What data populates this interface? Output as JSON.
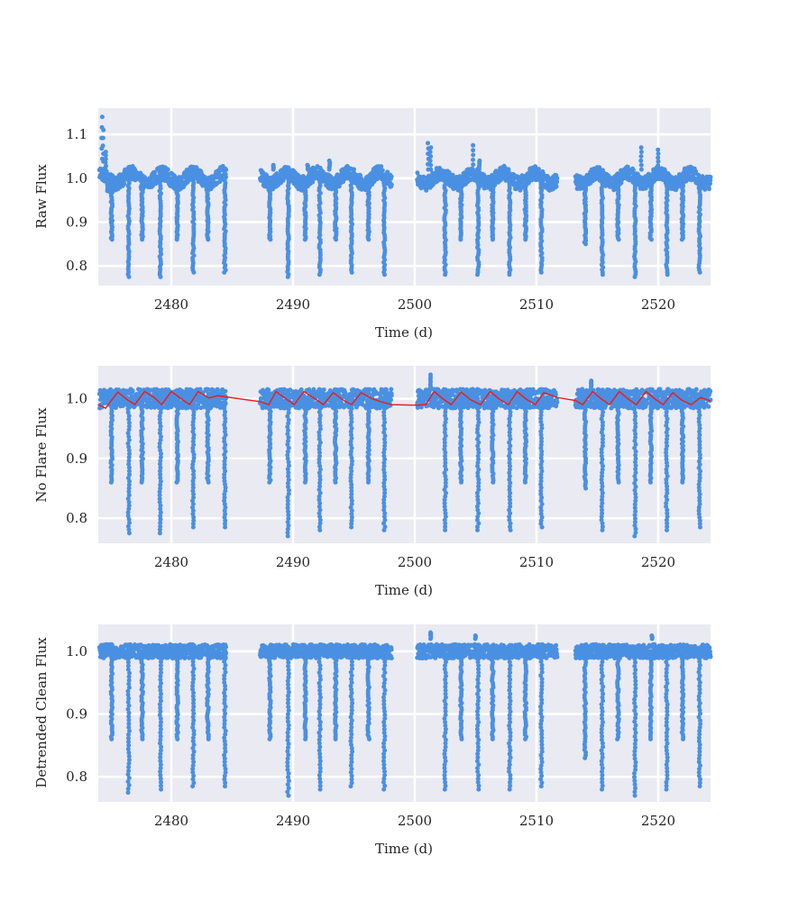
{
  "chart_data": [
    {
      "type": "scatter",
      "xlabel": "Time (d)",
      "ylabel": "Raw Flux",
      "xlim": [
        2474,
        2524.3
      ],
      "ylim": [
        0.755,
        1.16
      ],
      "xticks": [
        2480,
        2490,
        2500,
        2510,
        2520
      ],
      "yticks": [
        0.8,
        0.9,
        1.0,
        1.1
      ],
      "ytick_labels": [
        "0.8",
        "0.9",
        "1.0",
        "1.1"
      ],
      "grid": true,
      "series": [
        {
          "kind": "points",
          "color": "#4a90e2",
          "baseline": 1.0,
          "segments": [
            [
              2474.1,
              2484.5
            ],
            [
              2487.3,
              2498.1
            ],
            [
              2500.2,
              2511.7
            ],
            [
              2513.2,
              2524.3
            ]
          ],
          "dips": [
            {
              "t": 2474.8,
              "min": 0.97
            },
            {
              "t": 2475.1,
              "min": 0.86
            },
            {
              "t": 2476.5,
              "min": 0.775
            },
            {
              "t": 2477.6,
              "min": 0.86
            },
            {
              "t": 2479.1,
              "min": 0.775
            },
            {
              "t": 2480.5,
              "min": 0.86
            },
            {
              "t": 2481.8,
              "min": 0.785
            },
            {
              "t": 2483.0,
              "min": 0.86
            },
            {
              "t": 2484.4,
              "min": 0.785
            },
            {
              "t": 2488.1,
              "min": 0.86
            },
            {
              "t": 2489.6,
              "min": 0.775
            },
            {
              "t": 2491.0,
              "min": 0.86
            },
            {
              "t": 2492.2,
              "min": 0.78
            },
            {
              "t": 2493.5,
              "min": 0.86
            },
            {
              "t": 2494.8,
              "min": 0.785
            },
            {
              "t": 2496.2,
              "min": 0.86
            },
            {
              "t": 2497.5,
              "min": 0.78
            },
            {
              "t": 2502.5,
              "min": 0.78
            },
            {
              "t": 2503.8,
              "min": 0.86
            },
            {
              "t": 2505.2,
              "min": 0.78
            },
            {
              "t": 2506.4,
              "min": 0.86
            },
            {
              "t": 2507.8,
              "min": 0.78
            },
            {
              "t": 2509.1,
              "min": 0.86
            },
            {
              "t": 2510.4,
              "min": 0.785
            },
            {
              "t": 2514.0,
              "min": 0.85
            },
            {
              "t": 2515.4,
              "min": 0.78
            },
            {
              "t": 2516.7,
              "min": 0.86
            },
            {
              "t": 2518.1,
              "min": 0.775
            },
            {
              "t": 2519.4,
              "min": 0.86
            },
            {
              "t": 2520.7,
              "min": 0.78
            },
            {
              "t": 2522.0,
              "min": 0.86
            },
            {
              "t": 2523.4,
              "min": 0.785
            }
          ],
          "flares": [
            {
              "t": 2474.3,
              "peak": 1.14
            },
            {
              "t": 2474.4,
              "peak": 1.11
            },
            {
              "t": 2474.6,
              "peak": 1.06
            },
            {
              "t": 2488.4,
              "peak": 1.03
            },
            {
              "t": 2491.2,
              "peak": 1.03
            },
            {
              "t": 2493.0,
              "peak": 1.04
            },
            {
              "t": 2501.1,
              "peak": 1.08
            },
            {
              "t": 2501.3,
              "peak": 1.07
            },
            {
              "t": 2504.8,
              "peak": 1.075
            },
            {
              "t": 2505.3,
              "peak": 1.04
            },
            {
              "t": 2518.6,
              "peak": 1.07
            },
            {
              "t": 2520.0,
              "peak": 1.065
            }
          ]
        }
      ]
    },
    {
      "type": "scatter",
      "xlabel": "Time (d)",
      "ylabel": "No Flare Flux",
      "xlim": [
        2474,
        2524.3
      ],
      "ylim": [
        0.758,
        1.055
      ],
      "xticks": [
        2480,
        2490,
        2500,
        2510,
        2520
      ],
      "yticks": [
        0.8,
        0.9,
        1.0
      ],
      "ytick_labels": [
        "0.8",
        "0.9",
        "1.0"
      ],
      "grid": true,
      "series": [
        {
          "kind": "points",
          "color": "#4a90e2",
          "baseline": 1.0,
          "segments": [
            [
              2474.1,
              2484.5
            ],
            [
              2487.3,
              2498.1
            ],
            [
              2500.2,
              2511.7
            ],
            [
              2513.2,
              2524.3
            ]
          ],
          "dips": [
            {
              "t": 2475.1,
              "min": 0.86
            },
            {
              "t": 2476.5,
              "min": 0.775
            },
            {
              "t": 2477.6,
              "min": 0.86
            },
            {
              "t": 2479.1,
              "min": 0.775
            },
            {
              "t": 2480.5,
              "min": 0.86
            },
            {
              "t": 2481.8,
              "min": 0.785
            },
            {
              "t": 2483.0,
              "min": 0.86
            },
            {
              "t": 2484.4,
              "min": 0.785
            },
            {
              "t": 2488.1,
              "min": 0.86
            },
            {
              "t": 2489.6,
              "min": 0.77
            },
            {
              "t": 2491.0,
              "min": 0.86
            },
            {
              "t": 2492.2,
              "min": 0.78
            },
            {
              "t": 2493.5,
              "min": 0.86
            },
            {
              "t": 2494.8,
              "min": 0.785
            },
            {
              "t": 2496.2,
              "min": 0.86
            },
            {
              "t": 2497.5,
              "min": 0.78
            },
            {
              "t": 2502.5,
              "min": 0.78
            },
            {
              "t": 2503.8,
              "min": 0.86
            },
            {
              "t": 2505.2,
              "min": 0.78
            },
            {
              "t": 2506.4,
              "min": 0.86
            },
            {
              "t": 2507.8,
              "min": 0.78
            },
            {
              "t": 2509.1,
              "min": 0.86
            },
            {
              "t": 2510.4,
              "min": 0.785
            },
            {
              "t": 2514.0,
              "min": 0.85
            },
            {
              "t": 2515.4,
              "min": 0.78
            },
            {
              "t": 2516.7,
              "min": 0.86
            },
            {
              "t": 2518.1,
              "min": 0.77
            },
            {
              "t": 2519.4,
              "min": 0.86
            },
            {
              "t": 2520.7,
              "min": 0.78
            },
            {
              "t": 2522.0,
              "min": 0.86
            },
            {
              "t": 2523.4,
              "min": 0.785
            }
          ],
          "flares": [
            {
              "t": 2501.3,
              "peak": 1.04
            },
            {
              "t": 2514.5,
              "peak": 1.03
            }
          ]
        },
        {
          "kind": "trend",
          "color": "#e82020",
          "x": [
            2474.0,
            2474.6,
            2475.6,
            2476.4,
            2477.0,
            2477.8,
            2478.6,
            2479.2,
            2480.0,
            2480.8,
            2481.5,
            2482.2,
            2483.1,
            2483.8,
            2484.5,
            2487.3,
            2488.0,
            2488.6,
            2489.4,
            2490.1,
            2490.9,
            2491.8,
            2492.5,
            2493.3,
            2494.1,
            2494.8,
            2495.6,
            2496.5,
            2497.2,
            2498.1,
            2500.2,
            2500.9,
            2501.6,
            2502.3,
            2503.0,
            2503.8,
            2504.6,
            2505.4,
            2506.2,
            2506.9,
            2507.7,
            2508.4,
            2509.1,
            2509.9,
            2510.6,
            2511.7,
            2513.2,
            2513.8,
            2514.6,
            2515.3,
            2516.0,
            2516.8,
            2517.5,
            2518.2,
            2519.0,
            2519.7,
            2520.4,
            2521.2,
            2521.9,
            2522.7,
            2523.5,
            2524.3
          ],
          "y": [
            0.99,
            0.984,
            1.011,
            0.998,
            0.99,
            1.012,
            1.002,
            0.99,
            1.012,
            1.0,
            0.99,
            1.012,
            1.001,
            1.005,
            1.003,
            0.995,
            0.99,
            1.012,
            1.0,
            0.99,
            1.012,
            1.0,
            0.99,
            1.01,
            0.998,
            0.99,
            1.01,
            1.0,
            0.995,
            0.99,
            0.989,
            0.99,
            1.012,
            1.0,
            0.99,
            1.011,
            0.998,
            0.99,
            1.012,
            1.0,
            0.99,
            1.012,
            1.0,
            0.99,
            1.01,
            1.002,
            0.997,
            0.99,
            1.012,
            1.0,
            0.99,
            1.012,
            1.0,
            0.99,
            1.012,
            1.0,
            0.99,
            1.01,
            0.998,
            0.99,
            1.002,
            0.996
          ]
        }
      ]
    },
    {
      "type": "scatter",
      "xlabel": "Time (d)",
      "ylabel": "Detrended Clean Flux",
      "xlim": [
        2474,
        2524.3
      ],
      "ylim": [
        0.76,
        1.043
      ],
      "xticks": [
        2480,
        2490,
        2500,
        2510,
        2520
      ],
      "yticks": [
        0.8,
        0.9,
        1.0
      ],
      "ytick_labels": [
        "0.8",
        "0.9",
        "1.0"
      ],
      "grid": true,
      "series": [
        {
          "kind": "points",
          "color": "#4a90e2",
          "baseline": 1.0,
          "segments": [
            [
              2474.1,
              2484.5
            ],
            [
              2487.3,
              2498.1
            ],
            [
              2500.2,
              2511.7
            ],
            [
              2513.2,
              2524.3
            ]
          ],
          "dips": [
            {
              "t": 2475.1,
              "min": 0.86
            },
            {
              "t": 2476.5,
              "min": 0.775
            },
            {
              "t": 2477.6,
              "min": 0.86
            },
            {
              "t": 2479.1,
              "min": 0.78
            },
            {
              "t": 2480.5,
              "min": 0.86
            },
            {
              "t": 2481.8,
              "min": 0.785
            },
            {
              "t": 2483.0,
              "min": 0.86
            },
            {
              "t": 2484.4,
              "min": 0.785
            },
            {
              "t": 2488.1,
              "min": 0.86
            },
            {
              "t": 2489.6,
              "min": 0.77
            },
            {
              "t": 2491.0,
              "min": 0.86
            },
            {
              "t": 2492.2,
              "min": 0.78
            },
            {
              "t": 2493.5,
              "min": 0.86
            },
            {
              "t": 2494.8,
              "min": 0.785
            },
            {
              "t": 2496.2,
              "min": 0.86
            },
            {
              "t": 2497.5,
              "min": 0.78
            },
            {
              "t": 2502.5,
              "min": 0.78
            },
            {
              "t": 2503.8,
              "min": 0.86
            },
            {
              "t": 2505.2,
              "min": 0.78
            },
            {
              "t": 2506.4,
              "min": 0.86
            },
            {
              "t": 2507.8,
              "min": 0.78
            },
            {
              "t": 2509.1,
              "min": 0.86
            },
            {
              "t": 2510.4,
              "min": 0.785
            },
            {
              "t": 2514.0,
              "min": 0.83
            },
            {
              "t": 2515.4,
              "min": 0.78
            },
            {
              "t": 2516.7,
              "min": 0.86
            },
            {
              "t": 2518.1,
              "min": 0.77
            },
            {
              "t": 2519.4,
              "min": 0.86
            },
            {
              "t": 2520.7,
              "min": 0.78
            },
            {
              "t": 2522.0,
              "min": 0.86
            },
            {
              "t": 2523.4,
              "min": 0.785
            }
          ],
          "flares": [
            {
              "t": 2501.3,
              "peak": 1.03
            },
            {
              "t": 2505.0,
              "peak": 1.025
            },
            {
              "t": 2519.5,
              "peak": 1.025
            }
          ]
        }
      ]
    }
  ]
}
